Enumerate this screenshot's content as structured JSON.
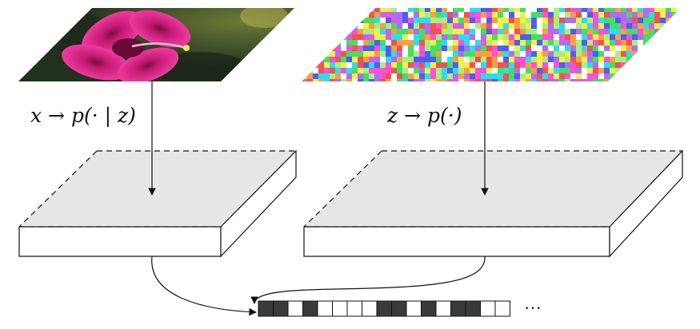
{
  "labels": {
    "left_map": "x → p(· | z)",
    "right_map": "z → p(·)",
    "sequence_continuation": "···"
  },
  "images": {
    "left": {
      "subject": "pink hibiscus flower photo",
      "background_color": "#2b3a2a",
      "flower_color": "#e0248e"
    },
    "right": {
      "subject": "random colored noise grid",
      "palette": [
        "#ff4fd8",
        "#27e0ef",
        "#f2f048",
        "#4f5df5",
        "#40e060",
        "#f25151",
        "#b06cf5",
        "#a8f07a",
        "#ffffff",
        "#ff9e3d"
      ]
    }
  },
  "sequence": {
    "cells": [
      1,
      1,
      0,
      1,
      0,
      0,
      0,
      0,
      1,
      1,
      0,
      1,
      0,
      1,
      1,
      0,
      0
    ],
    "filled_color": "#3a3a3a",
    "empty_color": "#ffffff"
  },
  "colors": {
    "box_top": "#e6e6e6",
    "box_front": "#ffffff",
    "stroke": "#111111"
  }
}
